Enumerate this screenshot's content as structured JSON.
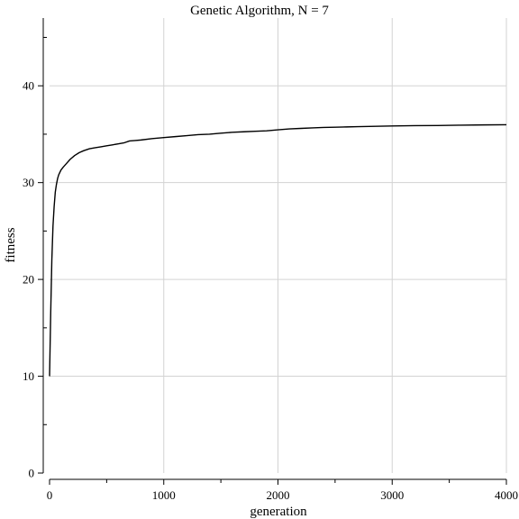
{
  "chart_data": {
    "type": "line",
    "title": "Genetic Algorithm, N = 7",
    "xlabel": "generation",
    "ylabel": "fitness",
    "xlim": [
      0,
      4000
    ],
    "ylim": [
      0,
      47
    ],
    "grid": true,
    "x_ticks": [
      0,
      1000,
      2000,
      3000,
      4000
    ],
    "y_ticks": [
      0,
      10,
      20,
      30,
      40
    ],
    "x_tick_labels": [
      "0",
      "1000",
      "2000",
      "3000",
      "4000"
    ],
    "y_tick_labels": [
      "0",
      "10",
      "20",
      "30",
      "40"
    ],
    "series": [
      {
        "color": "#000000",
        "x": [
          0,
          10,
          20,
          30,
          40,
          50,
          60,
          70,
          80,
          100,
          120,
          150,
          180,
          220,
          260,
          300,
          350,
          400,
          450,
          500,
          550,
          600,
          650,
          700,
          750,
          800,
          900,
          1000,
          1100,
          1200,
          1300,
          1400,
          1500,
          1600,
          1700,
          1800,
          1900,
          2000,
          2100,
          2200,
          2300,
          2400,
          2500,
          2600,
          2700,
          2800,
          2900,
          3000,
          3200,
          3400,
          3600,
          3800,
          4000
        ],
        "y": [
          10.0,
          16.5,
          22.0,
          25.5,
          27.5,
          29.0,
          29.8,
          30.4,
          30.8,
          31.3,
          31.6,
          32.0,
          32.4,
          32.8,
          33.1,
          33.3,
          33.5,
          33.6,
          33.7,
          33.8,
          33.9,
          34.0,
          34.1,
          34.3,
          34.35,
          34.4,
          34.55,
          34.65,
          34.75,
          34.85,
          34.95,
          35.0,
          35.1,
          35.2,
          35.25,
          35.3,
          35.35,
          35.45,
          35.55,
          35.6,
          35.65,
          35.7,
          35.72,
          35.75,
          35.78,
          35.8,
          35.83,
          35.85,
          35.88,
          35.9,
          35.93,
          35.96,
          35.98
        ]
      }
    ]
  }
}
